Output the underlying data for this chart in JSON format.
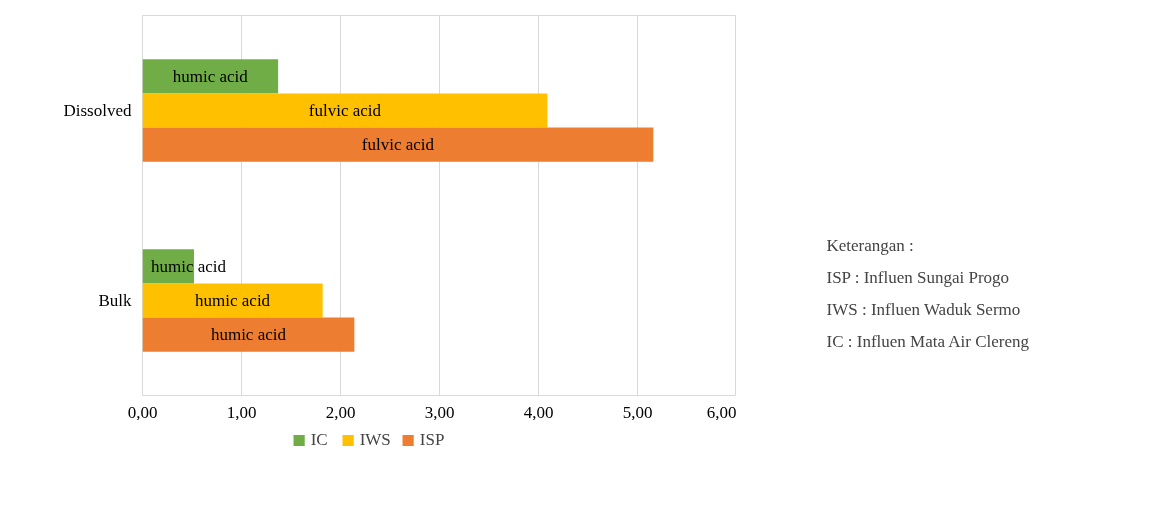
{
  "chart_data": {
    "type": "bar",
    "orientation": "horizontal",
    "categories": [
      "Dissolved",
      "Bulk"
    ],
    "series": [
      {
        "name": "IC",
        "color": "#70ad47",
        "values": [
          1.37,
          0.52
        ],
        "value_labels": [
          "humic acid",
          "humic acid"
        ]
      },
      {
        "name": "IWS",
        "color": "#ffc000",
        "values": [
          4.09,
          1.82
        ],
        "value_labels": [
          "fulvic acid",
          "humic acid"
        ]
      },
      {
        "name": "ISP",
        "color": "#ed7d31",
        "values": [
          5.16,
          2.14
        ],
        "value_labels": [
          "fulvic acid",
          "humic acid"
        ]
      }
    ],
    "xlim": [
      0,
      6
    ],
    "xticks": [
      {
        "value": 0,
        "label": "0,00"
      },
      {
        "value": 1,
        "label": "1,00"
      },
      {
        "value": 2,
        "label": "2,00"
      },
      {
        "value": 3,
        "label": "3,00"
      },
      {
        "value": 4,
        "label": "4,00"
      },
      {
        "value": 5,
        "label": "5,00"
      },
      {
        "value": 6,
        "label": "6,00"
      }
    ],
    "grid": "x",
    "legend": "bottom",
    "annotations": [
      "Keterangan :",
      "ISP : Influen Sungai Progo",
      "IWS : Influen Waduk Sermo",
      "IC : Influen Mata Air Clereng"
    ]
  }
}
